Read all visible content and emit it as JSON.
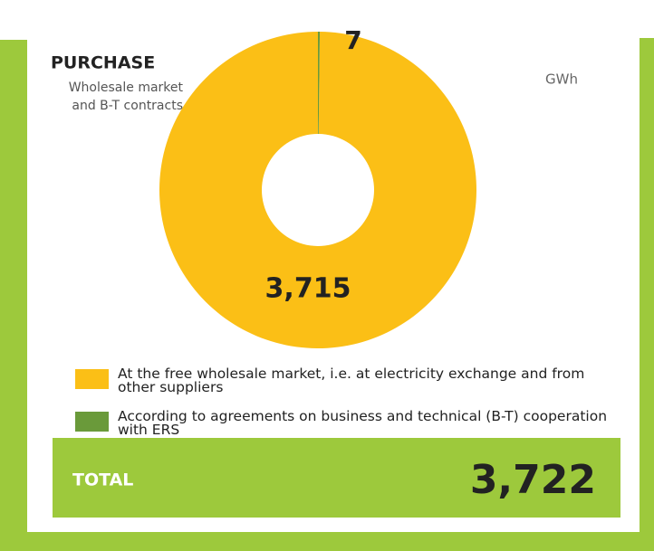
{
  "chart_data": {
    "type": "donut",
    "title": "PURCHASE",
    "subtitle": "Wholesale market and B-T contracts",
    "unit": "GWh",
    "categories": [
      "At the free wholesale market, i.e. at electricity exchange and from other suppliers",
      "According to agreements on business and technical (B-T) cooperation with ERS"
    ],
    "values": [
      3715,
      7
    ],
    "value_labels": [
      "3,715",
      "7"
    ],
    "colors": [
      "#fbbf16",
      "#6a9a3a"
    ],
    "total": {
      "label": "TOTAL",
      "value": 3722,
      "value_label": "3,722"
    }
  }
}
